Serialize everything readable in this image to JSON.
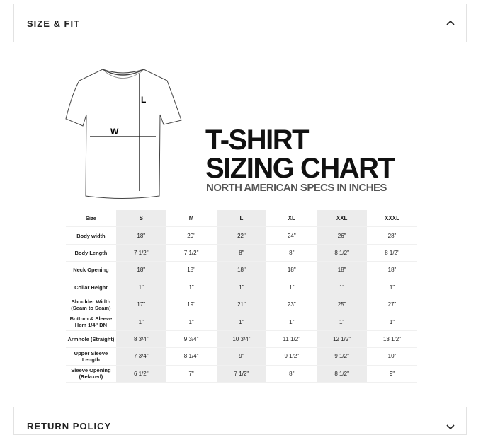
{
  "accordion": {
    "open_title": "SIZE & FIT",
    "closed_title": "RETURN POLICY"
  },
  "chart": {
    "diagram_width_label": "W",
    "diagram_length_label": "L",
    "title_line1": "T-SHIRT",
    "title_line2": "SIZING CHART",
    "subtitle": "NORTH AMERICAN SPECS IN INCHES",
    "table": {
      "rows": [
        [
          "Size",
          "S",
          "M",
          "L",
          "XL",
          "XXL",
          "XXXL"
        ],
        [
          "Body width",
          "18\"",
          "20\"",
          "22\"",
          "24\"",
          "26\"",
          "28\""
        ],
        [
          "Body Length",
          "7 1/2\"",
          "7 1/2\"",
          "8\"",
          "8\"",
          "8 1/2\"",
          "8 1/2\""
        ],
        [
          "Neck Opening",
          "18\"",
          "18\"",
          "18\"",
          "18\"",
          "18\"",
          "18\""
        ],
        [
          "Collar Height",
          "1\"",
          "1\"",
          "1\"",
          "1\"",
          "1\"",
          "1\""
        ],
        [
          "Shoulder Width (Seam to Seam)",
          "17\"",
          "19\"",
          "21\"",
          "23\"",
          "25\"",
          "27\""
        ],
        [
          "Bottom & Sleeve Hem 1/4\" DN",
          "1\"",
          "1\"",
          "1\"",
          "1\"",
          "1\"",
          "1\""
        ],
        [
          "Armhole (Straight)",
          "8 3/4\"",
          "9 3/4\"",
          "10 3/4\"",
          "11 1/2\"",
          "12 1/2\"",
          "13 1/2\""
        ],
        [
          "Upper Sleeve Length",
          "7 3/4\"",
          "8 1/4\"",
          "9\"",
          "9 1/2\"",
          "9 1/2\"",
          "10\""
        ],
        [
          "Sleeve Opening (Relaxed)",
          "6 1/2\"",
          "7\"",
          "7 1/2\"",
          "8\"",
          "8 1/2\"",
          "9\""
        ]
      ]
    }
  }
}
